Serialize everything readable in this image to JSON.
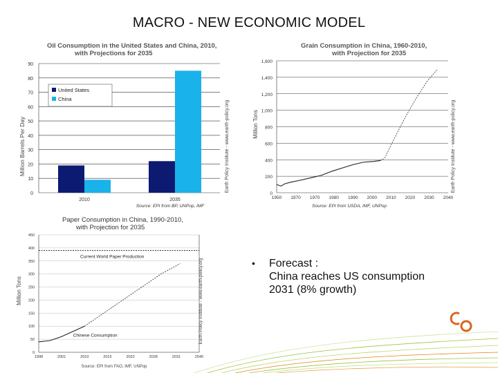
{
  "slide": {
    "title": "MACRO - NEW ECONOMIC MODEL",
    "bullet": "•",
    "forecast_line1": "Forecast :",
    "forecast_line2": "China reaches US consumption",
    "forecast_line3": "2031 (8% growth)",
    "logo_text": "CO"
  },
  "colors": {
    "navy": "#0d1a72",
    "sky": "#19b2ea",
    "grid": "#222222",
    "accent_green": "#8ab832",
    "accent_orange": "#e6801a",
    "logo": "#d8651c"
  },
  "chart_data": [
    {
      "type": "bar",
      "title": "Oil Consumption in the United States and China, 2010,",
      "subtitle": "with Projections for 2035",
      "ylabel": "Million Barrels Per Day",
      "ylim": [
        0,
        90
      ],
      "yticks": [
        "0",
        "10",
        "20",
        "30",
        "40",
        "50",
        "60",
        "70",
        "80",
        "90"
      ],
      "categories": [
        "2010",
        "2035"
      ],
      "series": [
        {
          "name": "United States",
          "color": "#0d1a72",
          "values": [
            19,
            22
          ]
        },
        {
          "name": "China",
          "color": "#19b2ea",
          "values": [
            9,
            85
          ]
        }
      ],
      "legend": "upper-left",
      "source": "Source: EPI from BP, UNPop, IMF",
      "side_note": "Earth Policy Institute - www.earth-policy.org"
    },
    {
      "type": "line",
      "title": "Grain Consumption in China, 1960-2010,",
      "subtitle": "with Projection for 2035",
      "ylabel": "Million Tons",
      "ylim": [
        0,
        1600
      ],
      "xlim": [
        1959,
        2040
      ],
      "yticks": [
        "0",
        "200",
        "400",
        "600",
        "800",
        "1,000",
        "1,200",
        "1,400",
        "1,600"
      ],
      "xticks": [
        "1950",
        "1970",
        "1970",
        "1980",
        "1990",
        "2000",
        "2010",
        "2020",
        "2030",
        "2040"
      ],
      "series": [
        {
          "name": "",
          "style": "solid",
          "x": [
            1959,
            1961,
            1963,
            1966,
            1970,
            1975,
            1980,
            1985,
            1990,
            1995,
            2000,
            2005,
            2008
          ],
          "y": [
            100,
            80,
            110,
            130,
            150,
            180,
            210,
            260,
            300,
            340,
            370,
            380,
            390
          ]
        },
        {
          "name": "",
          "style": "dashed",
          "x": [
            2008,
            2010,
            2015,
            2020,
            2025,
            2030,
            2035
          ],
          "y": [
            390,
            420,
            680,
            930,
            1150,
            1350,
            1500
          ]
        }
      ],
      "source": "Source: EPI from USDA, IMF, UNPop",
      "side_note": "Earth Policy Institute - www.earth-policy.org"
    },
    {
      "type": "line",
      "title": "Paper Consumption in China, 1990-2010,",
      "subtitle": "with Projection for 2035",
      "ylabel": "Million Tons",
      "ylim": [
        0,
        450
      ],
      "xlim": [
        1998,
        2040
      ],
      "yticks": [
        "0",
        "50",
        "100",
        "150",
        "200",
        "250",
        "300",
        "350",
        "400",
        "450"
      ],
      "xticks": [
        "1998",
        "2001",
        "2010",
        "2015",
        "2022",
        "2028",
        "2031",
        "2040"
      ],
      "series": [
        {
          "name": "",
          "style": "solid",
          "x": [
            1998,
            2001,
            2004,
            2007,
            2010
          ],
          "y": [
            40,
            45,
            60,
            80,
            100
          ]
        },
        {
          "name": "",
          "style": "dashed",
          "x": [
            2010,
            2015,
            2020,
            2025,
            2030,
            2035
          ],
          "y": [
            100,
            150,
            200,
            250,
            300,
            340
          ]
        }
      ],
      "reference_line": {
        "y": 390,
        "label": "Current World Paper Production"
      },
      "series_label": "Chinese Consumption",
      "source": "Source: EPI from FAO, IMF, UNPop",
      "side_note": "Earth Policy Institute - www.earth-policy.org"
    }
  ]
}
